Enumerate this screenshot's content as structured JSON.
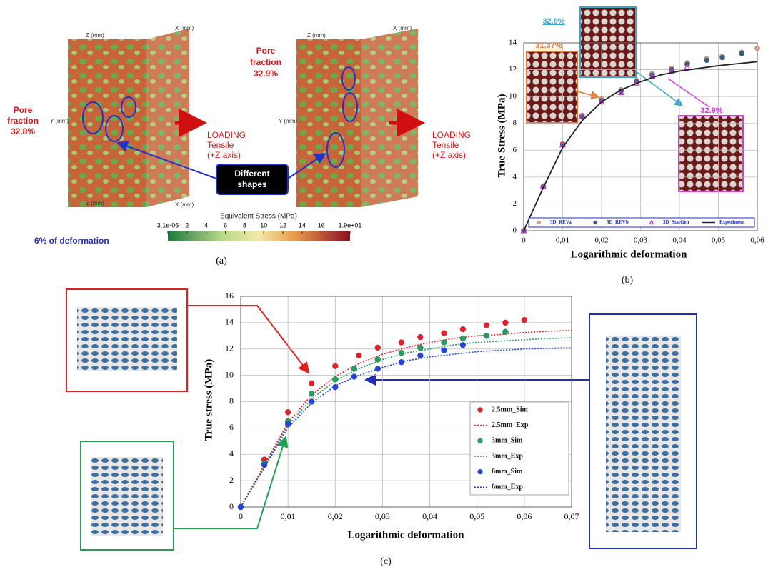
{
  "panel_a": {
    "caption": "(a)",
    "pore_left": [
      "Pore",
      "fraction",
      "32.8%"
    ],
    "pore_right": [
      "Pore",
      "fraction",
      "32.9%"
    ],
    "loading": [
      "LOADING",
      "Tensile",
      "(+Z axis)"
    ],
    "callout": [
      "Different",
      "shapes"
    ],
    "axes": [
      "Z (mm)",
      "X (mm)",
      "Y (mm)"
    ],
    "colorbar": {
      "title": "Equivalent Stress (MPa)",
      "ticks": [
        {
          "value": 3.1e-06,
          "label": "3.1e-06"
        },
        2,
        4,
        6,
        8,
        10,
        12,
        14,
        16,
        {
          "value": 19,
          "label": "1.9e+01"
        }
      ]
    },
    "deformation": "6% of deformation"
  },
  "chart_data": [
    {
      "type": "scatter",
      "caption": "(b)",
      "xlabel": "Logarithmic deformation",
      "ylabel": "True Stress (MPa)",
      "xlim": [
        0,
        0.06
      ],
      "xticks": [
        0,
        {
          "value": 0.01,
          "label": "0,01"
        },
        {
          "value": 0.02,
          "label": "0,02"
        },
        {
          "value": 0.03,
          "label": "0,03"
        },
        {
          "value": 0.04,
          "label": "0,04"
        },
        {
          "value": 0.05,
          "label": "0,05"
        },
        {
          "value": 0.06,
          "label": "0,06"
        }
      ],
      "ylim": [
        0,
        14
      ],
      "yticks": [
        0,
        2,
        4,
        6,
        8,
        10,
        12,
        14
      ],
      "grid": true,
      "legend": "bottom",
      "insets": [
        {
          "label": "32.8%",
          "color": "#3aa6c8"
        },
        {
          "label": "31.37%",
          "color": "#e07b39"
        },
        {
          "label": "32.9%",
          "color": "#d63ad6"
        }
      ],
      "series": [
        {
          "name": "3D_REVa",
          "marker": "circle",
          "color": "#e0a080",
          "x": [
            0,
            0.005,
            0.01,
            0.015,
            0.02,
            0.025,
            0.029,
            0.033,
            0.038,
            0.042,
            0.047,
            0.051,
            0.056,
            0.06
          ],
          "values": [
            0,
            3.3,
            6.5,
            8.6,
            9.8,
            10.5,
            11.2,
            11.7,
            12.1,
            12.5,
            12.8,
            13.0,
            13.3,
            13.6
          ]
        },
        {
          "name": "3D_REVb",
          "marker": "circle",
          "color": "#2f5f7f",
          "x": [
            0,
            0.005,
            0.01,
            0.015,
            0.02,
            0.025,
            0.029,
            0.033,
            0.038,
            0.042,
            0.047,
            0.051,
            0.056
          ],
          "values": [
            0,
            3.3,
            6.4,
            8.5,
            9.7,
            10.4,
            11.1,
            11.6,
            12.0,
            12.4,
            12.7,
            12.9,
            13.2
          ]
        },
        {
          "name": "3D_StatGen",
          "marker": "triangle",
          "color": "#cc33cc",
          "x": [
            0,
            0.005,
            0.01,
            0.015,
            0.02,
            0.025,
            0.029,
            0.033,
            0.038,
            0.042
          ],
          "values": [
            0,
            3.3,
            6.4,
            8.5,
            9.6,
            10.3,
            11.0,
            11.5,
            11.9,
            12.2
          ]
        },
        {
          "name": "Experiment",
          "linestyle": "solid",
          "color": "#222222",
          "x": [
            0,
            0.005,
            0.01,
            0.015,
            0.02,
            0.025,
            0.03,
            0.035,
            0.04,
            0.045,
            0.05,
            0.055,
            0.06
          ],
          "values": [
            0,
            3.2,
            6.2,
            8.2,
            9.6,
            10.5,
            11.1,
            11.6,
            11.9,
            12.1,
            12.3,
            12.45,
            12.6
          ]
        }
      ]
    },
    {
      "type": "scatter",
      "caption": "(c)",
      "xlabel": "Logarithmic deformation",
      "ylabel": "True stress (MPa)",
      "xlim": [
        0,
        0.07
      ],
      "xticks": [
        0,
        {
          "value": 0.01,
          "label": "0,01"
        },
        {
          "value": 0.02,
          "label": "0,02"
        },
        {
          "value": 0.03,
          "label": "0,03"
        },
        {
          "value": 0.04,
          "label": "0,04"
        },
        {
          "value": 0.05,
          "label": "0,05"
        },
        {
          "value": 0.06,
          "label": "0,06"
        },
        {
          "value": 0.07,
          "label": "0,07"
        }
      ],
      "ylim": [
        0,
        16
      ],
      "yticks": [
        0,
        2,
        4,
        6,
        8,
        10,
        12,
        14,
        16
      ],
      "grid": true,
      "legend": "right",
      "series": [
        {
          "name": "2.5mm_Sim",
          "marker": "circle",
          "color": "#e8202a",
          "x": [
            0,
            0.005,
            0.01,
            0.015,
            0.02,
            0.025,
            0.029,
            0.034,
            0.038,
            0.043,
            0.047,
            0.052,
            0.056,
            0.06
          ],
          "values": [
            0,
            3.6,
            7.2,
            9.4,
            10.7,
            11.5,
            12.1,
            12.5,
            12.9,
            13.2,
            13.5,
            13.8,
            14.0,
            14.2
          ]
        },
        {
          "name": "2.5mm_Exp",
          "linestyle": "dotted",
          "color": "#e8202a",
          "x": [
            0,
            0.005,
            0.01,
            0.015,
            0.02,
            0.025,
            0.03,
            0.035,
            0.04,
            0.045,
            0.05,
            0.055,
            0.06,
            0.065,
            0.07
          ],
          "values": [
            0,
            3.2,
            6.4,
            8.5,
            9.9,
            10.9,
            11.6,
            12.1,
            12.5,
            12.8,
            13.0,
            13.1,
            13.25,
            13.35,
            13.4
          ]
        },
        {
          "name": "3mm_Sim",
          "marker": "circle",
          "color": "#22a060",
          "x": [
            0,
            0.005,
            0.01,
            0.015,
            0.02,
            0.024,
            0.029,
            0.034,
            0.038,
            0.043,
            0.047,
            0.052,
            0.056
          ],
          "values": [
            0,
            3.3,
            6.5,
            8.6,
            9.7,
            10.5,
            11.2,
            11.7,
            12.1,
            12.5,
            12.8,
            13.0,
            13.3
          ]
        },
        {
          "name": "3mm_Exp",
          "linestyle": "dotted",
          "color": "#22a060",
          "x": [
            0,
            0.005,
            0.01,
            0.015,
            0.02,
            0.025,
            0.03,
            0.035,
            0.04,
            0.045,
            0.05,
            0.055,
            0.06,
            0.065,
            0.07
          ],
          "values": [
            0,
            3.1,
            6.2,
            8.2,
            9.6,
            10.5,
            11.2,
            11.7,
            12.0,
            12.3,
            12.5,
            12.6,
            12.7,
            12.8,
            12.85
          ]
        },
        {
          "name": "6mm_Sim",
          "marker": "circle",
          "color": "#2244dd",
          "x": [
            0,
            0.005,
            0.01,
            0.015,
            0.02,
            0.024,
            0.029,
            0.034,
            0.038,
            0.043,
            0.047
          ],
          "values": [
            0,
            3.2,
            6.3,
            8.0,
            9.1,
            9.9,
            10.5,
            11.0,
            11.5,
            11.9,
            12.3
          ]
        },
        {
          "name": "6mm_Exp",
          "linestyle": "dotted",
          "color": "#2244dd",
          "x": [
            0,
            0.005,
            0.01,
            0.015,
            0.02,
            0.025,
            0.03,
            0.035,
            0.04,
            0.045,
            0.05,
            0.055,
            0.06,
            0.065,
            0.07
          ],
          "values": [
            0,
            3.0,
            6.0,
            7.9,
            9.2,
            10.0,
            10.6,
            11.1,
            11.4,
            11.6,
            11.8,
            11.9,
            12.0,
            12.05,
            12.1
          ]
        }
      ]
    }
  ]
}
